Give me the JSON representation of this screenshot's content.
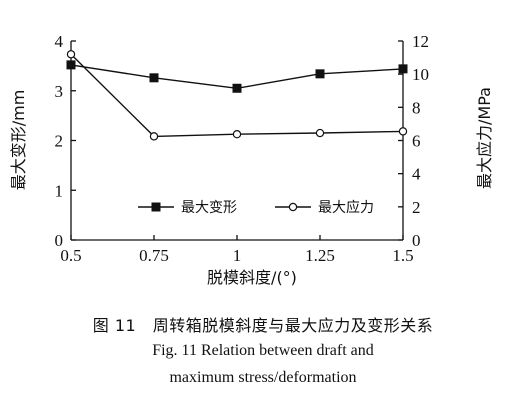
{
  "chart_data": {
    "type": "line",
    "x": [
      0.5,
      0.75,
      1,
      1.25,
      1.5
    ],
    "xlabel": "脱模斜度/(°)",
    "xticks": [
      "0.5",
      "0.75",
      "1",
      "1.25",
      "1.5"
    ],
    "xlim": [
      0.5,
      1.5
    ],
    "ylabel_left": "最大变形/mm",
    "ylim_left": [
      0,
      4
    ],
    "yticks_left": [
      "0",
      "1",
      "2",
      "3",
      "4"
    ],
    "ylabel_right": "最大应力/MPa",
    "ylim_right": [
      0,
      12
    ],
    "yticks_right": [
      "0",
      "2",
      "4",
      "6",
      "8",
      "10",
      "12"
    ],
    "series": [
      {
        "name": "最大变形",
        "axis": "left",
        "marker": "filled-square",
        "color": "#111111",
        "values": [
          3.52,
          3.26,
          3.05,
          3.34,
          3.44
        ]
      },
      {
        "name": "最大应力",
        "axis": "right",
        "marker": "open-circle",
        "color": "#111111",
        "values": [
          11.2,
          6.25,
          6.38,
          6.45,
          6.55
        ]
      }
    ],
    "legend_position": "bottom-center",
    "grid": false
  },
  "caption": {
    "cn": "图 11　周转箱脱模斜度与最大应力及变形关系",
    "en_line1": "Fig. 11    Relation between draft and",
    "en_line2": "maximum stress/deformation"
  }
}
